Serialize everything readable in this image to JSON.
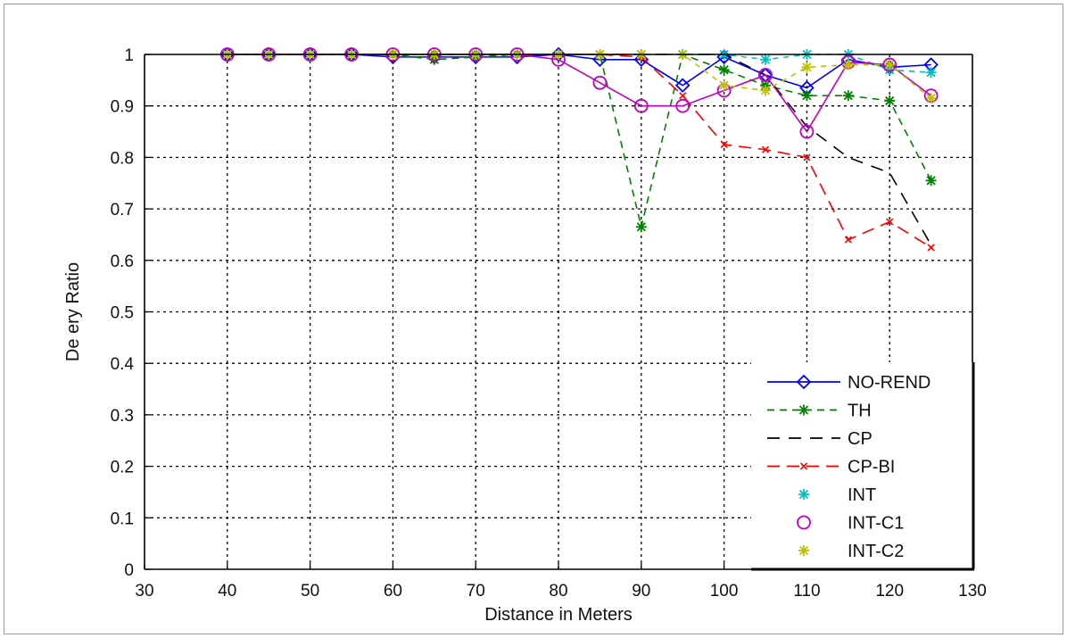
{
  "chart_data": {
    "type": "line",
    "title": "",
    "xlabel": "Distance in Meters",
    "ylabel": "De ery Ratio",
    "xlim": [
      30,
      130
    ],
    "ylim": [
      0,
      1
    ],
    "xticks": [
      30,
      40,
      50,
      60,
      70,
      80,
      90,
      100,
      110,
      120,
      130
    ],
    "xtick_labels": [
      "30",
      "40",
      "50",
      "60",
      "70",
      "80",
      "90",
      "100",
      "110",
      "120",
      "130"
    ],
    "yticks": [
      0,
      0.1,
      0.2,
      0.3,
      0.4,
      0.5,
      0.6,
      0.7,
      0.8,
      0.9,
      1
    ],
    "ytick_labels": [
      "0",
      "0.1",
      "0.2",
      "0.3",
      "0.4",
      "0.5",
      "0.6",
      "0.7",
      "0.8",
      "0.9",
      "1"
    ],
    "grid": true,
    "legend_position": "bottom-right",
    "x": [
      40,
      45,
      50,
      55,
      60,
      65,
      70,
      75,
      80,
      85,
      90,
      95,
      100,
      105,
      110,
      115,
      120,
      125
    ],
    "series": [
      {
        "name": "NO-REND",
        "color": "#0000ff",
        "dash": "",
        "marker": "diamond",
        "values": [
          1,
          1,
          1,
          1,
          0.995,
          0.995,
          0.995,
          0.995,
          1,
          0.99,
          0.99,
          0.94,
          0.995,
          0.96,
          0.935,
          0.99,
          0.975,
          0.98
        ]
      },
      {
        "name": "TH",
        "color": "#008000",
        "dash": "8,6",
        "marker": "star",
        "values": [
          1,
          1,
          1,
          1,
          1,
          0.99,
          0.995,
          1,
          1,
          1,
          0.665,
          1,
          0.97,
          0.94,
          0.92,
          0.92,
          0.91,
          0.755
        ]
      },
      {
        "name": "CP",
        "color": "#000000",
        "dash": "14,10",
        "marker": "none",
        "values": [
          1,
          1,
          1,
          1,
          1,
          1,
          1,
          1,
          1,
          1,
          1,
          1,
          1,
          0.96,
          0.86,
          0.8,
          0.77,
          0.63
        ]
      },
      {
        "name": "CP-BI",
        "color": "#ff0000",
        "dash": "14,8",
        "marker": "x",
        "values": [
          1,
          1,
          1,
          1,
          1,
          1,
          1,
          1,
          1,
          1,
          0.995,
          0.92,
          0.825,
          0.815,
          0.8,
          0.64,
          0.675,
          0.625
        ]
      },
      {
        "name": "INT",
        "color": "#00bfbf",
        "dash": "6,6",
        "marker": "star",
        "values": [
          1,
          1,
          1,
          1,
          1,
          1,
          1,
          1,
          1,
          1,
          1,
          1,
          1,
          0.99,
          1,
          1,
          0.97,
          0.965
        ]
      },
      {
        "name": "INT-C1",
        "color": "#bf00bf",
        "dash": "",
        "marker": "circle",
        "values": [
          1,
          1,
          1,
          1,
          1,
          1,
          1,
          1,
          0.99,
          0.945,
          0.9,
          0.9,
          0.93,
          0.96,
          0.85,
          0.985,
          0.98,
          0.92
        ]
      },
      {
        "name": "INT-C2",
        "color": "#bfbf00",
        "dash": "6,6",
        "marker": "star",
        "values": [
          1,
          1,
          1,
          1,
          1,
          1,
          1,
          1,
          1,
          1,
          1,
          1,
          0.94,
          0.93,
          0.975,
          0.98,
          0.98,
          0.915
        ]
      }
    ],
    "legend_labels": [
      "NO-REND",
      "TH",
      "CP",
      "CP-BI",
      "INT",
      "INT-C1",
      "INT-C2"
    ]
  }
}
